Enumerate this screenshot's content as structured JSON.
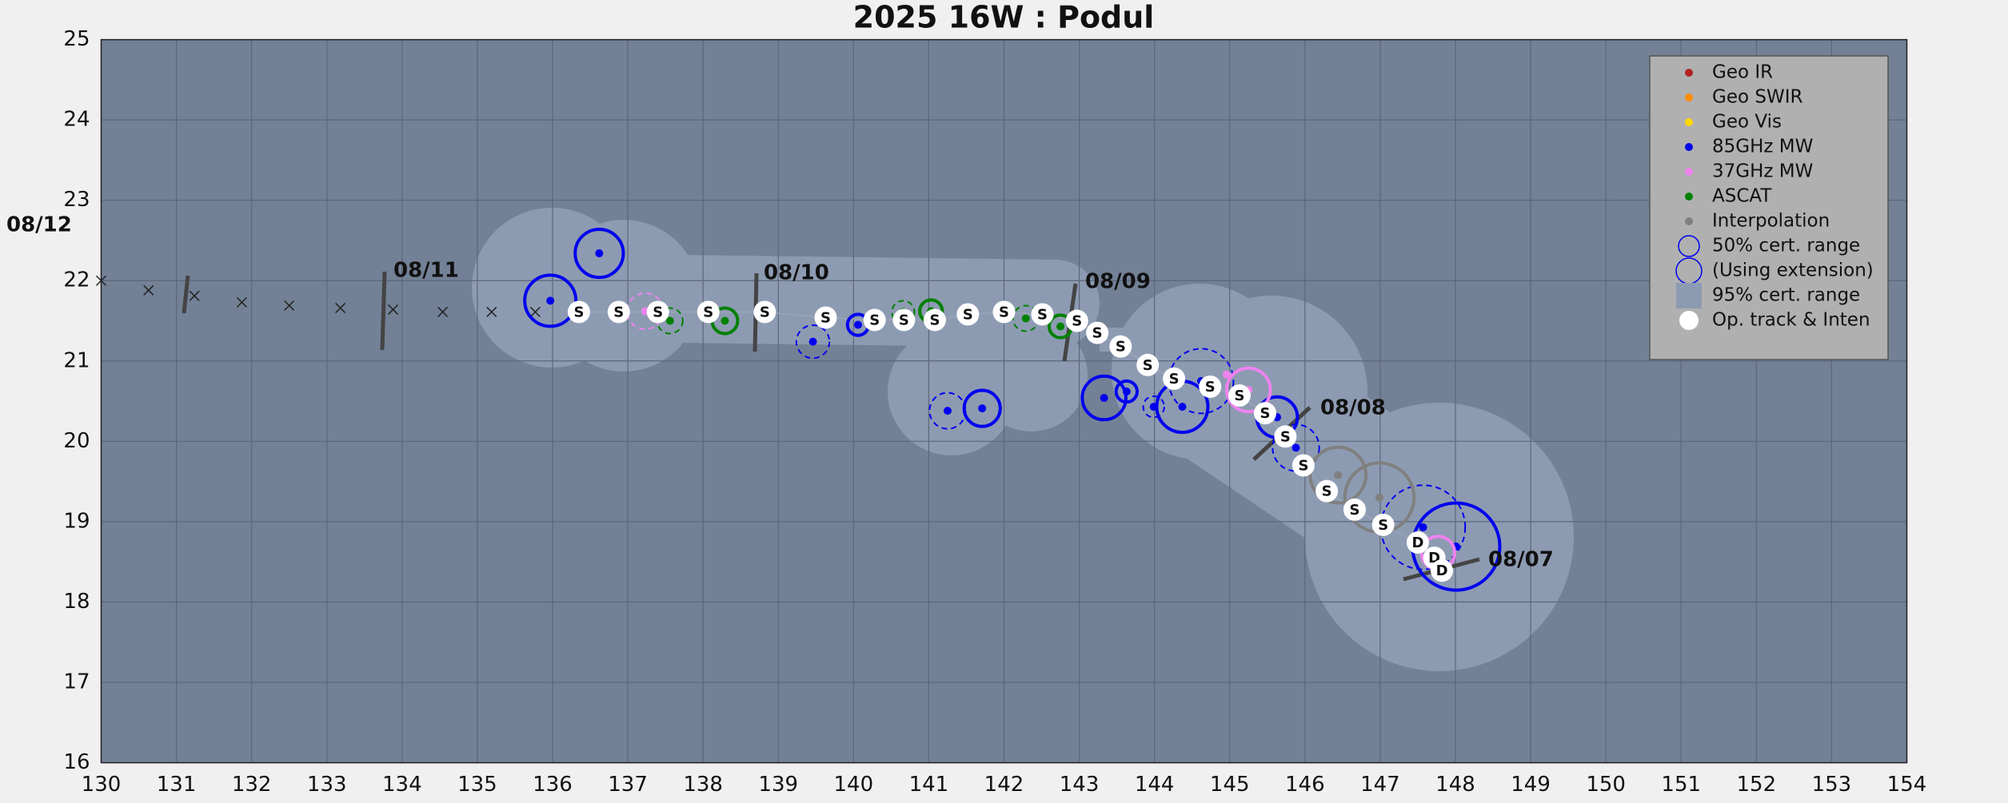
{
  "chart_data": {
    "type": "track",
    "title": "2025  16W :  Podul",
    "xlim": [
      130,
      154
    ],
    "xticks": [
      130,
      131,
      132,
      133,
      134,
      135,
      136,
      137,
      138,
      139,
      140,
      141,
      142,
      143,
      144,
      145,
      146,
      147,
      148,
      149,
      150,
      151,
      152,
      153,
      154
    ],
    "ylim": [
      16,
      25
    ],
    "yticks": [
      16,
      17,
      18,
      19,
      20,
      21,
      22,
      23,
      24,
      25
    ],
    "grid": true,
    "date_labels": [
      "08/12",
      "08/11",
      "08/10",
      "08/09",
      "08/08",
      "08/07"
    ],
    "series": [
      {
        "name": "Geo IR",
        "color": "#b22222",
        "x": [],
        "values": [],
        "sizes": [],
        "dashed": []
      },
      {
        "name": "Geo SWIR",
        "color": "#ff8c00",
        "x": [],
        "values": [],
        "sizes": [],
        "dashed": []
      },
      {
        "name": "Geo Vis",
        "color": "#ffd700",
        "x": [],
        "values": [],
        "sizes": [],
        "dashed": []
      },
      {
        "name": "85GHz MW",
        "color": "#0000ee",
        "x": [
          135.97,
          136.62,
          139.46,
          140.06,
          141.25,
          141.71,
          143.33,
          143.63,
          143.99,
          144.37,
          144.62,
          145.63,
          145.88,
          147.57,
          148.01
        ],
        "values": [
          21.75,
          22.34,
          21.24,
          21.45,
          20.38,
          20.41,
          20.54,
          20.62,
          20.43,
          20.43,
          20.75,
          20.3,
          19.92,
          18.93,
          18.69
        ],
        "sizes": [
          0.34,
          0.32,
          0.22,
          0.14,
          0.24,
          0.24,
          0.29,
          0.14,
          0.14,
          0.34,
          0.43,
          0.27,
          0.31,
          0.56,
          0.58
        ],
        "dashed": [
          false,
          false,
          true,
          false,
          true,
          false,
          false,
          false,
          true,
          false,
          true,
          false,
          true,
          true,
          false
        ]
      },
      {
        "name": "37GHz MW",
        "color": "#ee82ee",
        "x": [
          137.23,
          145.25,
          144.96,
          147.77
        ],
        "values": [
          21.62,
          20.64,
          20.83,
          18.61
        ],
        "sizes": [
          0.24,
          0.29,
          0,
          0.22
        ],
        "dashed": [
          true,
          false,
          false,
          false
        ]
      },
      {
        "name": "ASCAT",
        "color": "#008000",
        "x": [
          137.56,
          138.29,
          140.66,
          141.03,
          142.29,
          142.75
        ],
        "values": [
          21.5,
          21.5,
          21.61,
          21.62,
          21.53,
          21.43
        ],
        "sizes": [
          0.17,
          0.17,
          0.15,
          0.15,
          0.17,
          0.15
        ],
        "dashed": [
          true,
          false,
          true,
          false,
          true,
          false
        ]
      },
      {
        "name": "Interpolation",
        "color": "#808080",
        "x": [
          146.44,
          146.99
        ],
        "values": [
          19.58,
          19.3
        ],
        "sizes": [
          0.37,
          0.46
        ],
        "dashed": [
          false,
          false
        ]
      }
    ],
    "legend_extra": [
      "50% cert. range",
      "(Using extension)",
      "95% cert. range",
      "Op. track & Inten"
    ],
    "track": {
      "x": [
        136.35,
        136.88,
        137.4,
        138.07,
        138.82,
        139.63,
        140.28,
        140.67,
        141.08,
        141.52,
        142.0,
        142.51,
        142.97,
        143.24,
        143.55,
        143.91,
        144.26,
        144.74,
        145.13,
        145.47,
        145.74,
        145.98,
        146.29,
        146.66,
        147.04,
        147.5,
        147.72,
        147.82
      ],
      "values": [
        21.61,
        21.61,
        21.61,
        21.61,
        21.61,
        21.54,
        21.51,
        21.51,
        21.51,
        21.58,
        21.61,
        21.58,
        21.5,
        21.35,
        21.18,
        20.95,
        20.78,
        20.68,
        20.57,
        20.35,
        20.06,
        19.7,
        19.38,
        19.15,
        18.96,
        18.74,
        18.55,
        18.39
      ],
      "labels": [
        "S",
        "S",
        "S",
        "S",
        "S",
        "S",
        "S",
        "S",
        "S",
        "S",
        "S",
        "S",
        "S",
        "S",
        "S",
        "S",
        "S",
        "S",
        "S",
        "S",
        "S",
        "S",
        "S",
        "S",
        "S",
        "D",
        "D",
        "D"
      ]
    },
    "forecast": {
      "x": [
        130.0,
        130.63,
        131.24,
        131.87,
        132.5,
        133.18,
        133.88,
        134.54,
        135.19,
        135.77
      ],
      "values": [
        22.0,
        21.88,
        21.81,
        21.73,
        21.69,
        21.66,
        21.64,
        21.61,
        21.61,
        21.61
      ]
    }
  }
}
